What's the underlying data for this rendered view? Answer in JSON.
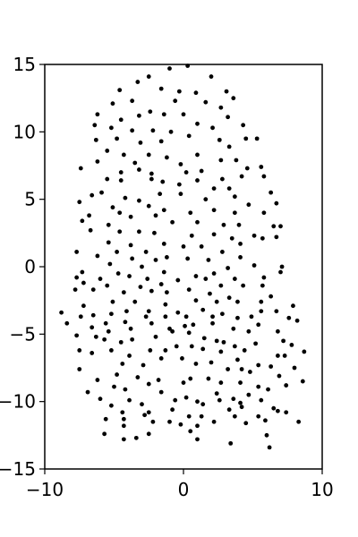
{
  "chart_data": {
    "type": "scatter",
    "title": "",
    "xlabel": "",
    "ylabel": "",
    "xlim": [
      -10,
      10
    ],
    "ylim": [
      -15,
      15
    ],
    "xticks": [
      -10,
      0,
      10
    ],
    "xtick_labels": [
      "−10",
      "0",
      "10"
    ],
    "yticks": [
      -15,
      -10,
      -5,
      0,
      5,
      10,
      15
    ],
    "ytick_labels": [
      "−15",
      "−10",
      "−5",
      "0",
      "5",
      "10",
      "15"
    ],
    "grid": false,
    "marker_color": "#000000",
    "points": [
      [
        -1.0,
        14.7
      ],
      [
        0.3,
        14.9
      ],
      [
        2.0,
        14.1
      ],
      [
        -2.5,
        14.1
      ],
      [
        -3.3,
        13.7
      ],
      [
        -1.6,
        13.2
      ],
      [
        -0.3,
        13.0
      ],
      [
        0.9,
        12.9
      ],
      [
        3.1,
        13.0
      ],
      [
        -4.6,
        13.1
      ],
      [
        3.6,
        12.5
      ],
      [
        -3.7,
        12.3
      ],
      [
        -5.1,
        12.1
      ],
      [
        -0.6,
        12.3
      ],
      [
        1.6,
        12.2
      ],
      [
        2.7,
        11.8
      ],
      [
        -6.2,
        11.3
      ],
      [
        -2.4,
        11.5
      ],
      [
        -1.4,
        11.3
      ],
      [
        0.0,
        11.3
      ],
      [
        -3.2,
        11.2
      ],
      [
        -4.5,
        10.9
      ],
      [
        3.2,
        11.1
      ],
      [
        1.0,
        10.6
      ],
      [
        2.1,
        10.3
      ],
      [
        4.3,
        10.5
      ],
      [
        -6.4,
        10.5
      ],
      [
        -5.2,
        10.3
      ],
      [
        -3.7,
        10.1
      ],
      [
        -2.2,
        10.1
      ],
      [
        -0.9,
        10.0
      ],
      [
        0.4,
        9.7
      ],
      [
        4.5,
        9.5
      ],
      [
        -6.3,
        9.4
      ],
      [
        -4.8,
        9.5
      ],
      [
        -3.1,
        9.2
      ],
      [
        -1.6,
        9.3
      ],
      [
        5.3,
        9.5
      ],
      [
        2.6,
        9.4
      ],
      [
        3.3,
        8.9
      ],
      [
        -5.5,
        8.6
      ],
      [
        -4.3,
        8.3
      ],
      [
        -2.5,
        8.3
      ],
      [
        -1.2,
        8.1
      ],
      [
        1.0,
        8.3
      ],
      [
        2.7,
        7.9
      ],
      [
        3.8,
        7.9
      ],
      [
        4.6,
        7.3
      ],
      [
        -6.2,
        7.8
      ],
      [
        -3.5,
        7.7
      ],
      [
        -0.2,
        7.6
      ],
      [
        5.6,
        7.4
      ],
      [
        -7.4,
        7.3
      ],
      [
        -3.2,
        7.2
      ],
      [
        -4.5,
        7.0
      ],
      [
        -2.3,
        6.9
      ],
      [
        -1.5,
        6.3
      ],
      [
        0.2,
        7.0
      ],
      [
        1.3,
        7.1
      ],
      [
        2.8,
        6.5
      ],
      [
        4.2,
        6.7
      ],
      [
        5.8,
        6.7
      ],
      [
        -5.5,
        6.5
      ],
      [
        -4.5,
        6.4
      ],
      [
        -2.3,
        6.5
      ],
      [
        -0.3,
        6.1
      ],
      [
        1.0,
        6.4
      ],
      [
        2.2,
        5.8
      ],
      [
        3.3,
        5.8
      ],
      [
        -6.6,
        5.3
      ],
      [
        -5.9,
        5.5
      ],
      [
        -4.2,
        5.1
      ],
      [
        -1.7,
        5.4
      ],
      [
        -0.2,
        5.4
      ],
      [
        1.6,
        5.0
      ],
      [
        3.7,
        5.2
      ],
      [
        -7.5,
        4.8
      ],
      [
        -5.1,
        4.4
      ],
      [
        -3.2,
        4.9
      ],
      [
        -2.5,
        4.5
      ],
      [
        4.7,
        4.6
      ],
      [
        6.3,
        5.5
      ],
      [
        6.7,
        4.7
      ],
      [
        -4.6,
        4.0
      ],
      [
        -1.4,
        4.2
      ],
      [
        0.5,
        4.0
      ],
      [
        2.2,
        4.2
      ],
      [
        3.7,
        4.0
      ],
      [
        -6.8,
        3.8
      ],
      [
        -3.8,
        3.7
      ],
      [
        -2.0,
        3.8
      ],
      [
        -0.8,
        3.3
      ],
      [
        2.9,
        3.1
      ],
      [
        5.8,
        4.0
      ],
      [
        -7.3,
        3.4
      ],
      [
        -5.4,
        3.1
      ],
      [
        1.0,
        3.3
      ],
      [
        4.0,
        3.1
      ],
      [
        6.5,
        3.0
      ],
      [
        -6.7,
        2.7
      ],
      [
        -4.6,
        2.6
      ],
      [
        -3.2,
        2.6
      ],
      [
        -2.1,
        2.5
      ],
      [
        0.6,
        2.3
      ],
      [
        2.2,
        2.4
      ],
      [
        3.5,
        2.1
      ],
      [
        5.1,
        2.3
      ],
      [
        7.0,
        3.0
      ],
      [
        -5.4,
        1.8
      ],
      [
        -3.8,
        1.6
      ],
      [
        -1.4,
        1.7
      ],
      [
        0.0,
        1.5
      ],
      [
        1.3,
        1.5
      ],
      [
        4.1,
        1.7
      ],
      [
        5.7,
        2.1
      ],
      [
        6.7,
        2.2
      ],
      [
        -7.7,
        1.1
      ],
      [
        -4.8,
        1.1
      ],
      [
        -2.7,
        1.1
      ],
      [
        2.8,
        1.1
      ],
      [
        -6.2,
        0.8
      ],
      [
        -3.7,
        0.6
      ],
      [
        -2.0,
        0.5
      ],
      [
        -1.2,
        0.7
      ],
      [
        0.3,
        0.6
      ],
      [
        1.8,
        0.5
      ],
      [
        4.1,
        0.7
      ],
      [
        5.1,
        0.1
      ],
      [
        7.1,
        0.0
      ],
      [
        -5.3,
        0.2
      ],
      [
        -3.0,
        0.0
      ],
      [
        3.2,
        -0.1
      ],
      [
        -7.3,
        -0.4
      ],
      [
        -4.7,
        -0.5
      ],
      [
        -1.4,
        -0.4
      ],
      [
        0.9,
        -0.7
      ],
      [
        2.2,
        -0.5
      ],
      [
        7.0,
        -0.4
      ],
      [
        -7.7,
        -0.8
      ],
      [
        -6.0,
        -0.9
      ],
      [
        -3.9,
        -0.7
      ],
      [
        -2.6,
        -0.9
      ],
      [
        -0.4,
        -1.0
      ],
      [
        1.6,
        -0.9
      ],
      [
        3.7,
        -0.9
      ],
      [
        5.8,
        -0.8
      ],
      [
        -7.2,
        -1.2
      ],
      [
        -5.5,
        -1.4
      ],
      [
        -3.1,
        -1.5
      ],
      [
        -1.6,
        -1.3
      ],
      [
        2.7,
        -1.4
      ],
      [
        4.3,
        -1.4
      ],
      [
        5.7,
        -1.4
      ],
      [
        -7.8,
        -1.7
      ],
      [
        -6.5,
        -1.7
      ],
      [
        -4.3,
        -1.9
      ],
      [
        -2.3,
        -1.8
      ],
      [
        -1.2,
        -1.9
      ],
      [
        0.4,
        -1.7
      ],
      [
        1.9,
        -2.0
      ],
      [
        3.3,
        -2.3
      ],
      [
        -5.1,
        -2.6
      ],
      [
        -3.5,
        -2.6
      ],
      [
        -1.3,
        -2.8
      ],
      [
        0.9,
        -2.5
      ],
      [
        2.4,
        -2.6
      ],
      [
        3.9,
        -2.6
      ],
      [
        6.3,
        -2.2
      ],
      [
        -7.2,
        -2.9
      ],
      [
        -6.5,
        -3.6
      ],
      [
        -5.2,
        -3.5
      ],
      [
        -4.1,
        -3.3
      ],
      [
        -2.5,
        -3.3
      ],
      [
        -0.4,
        -3.4
      ],
      [
        1.4,
        -3.2
      ],
      [
        2.8,
        -3.5
      ],
      [
        5.6,
        -2.6
      ],
      [
        7.9,
        -2.9
      ],
      [
        -8.8,
        -3.4
      ],
      [
        -7.4,
        -3.7
      ],
      [
        -2.7,
        -3.7
      ],
      [
        -1.3,
        -3.7
      ],
      [
        0.2,
        -3.7
      ],
      [
        2.1,
        -3.7
      ],
      [
        5.6,
        -3.3
      ],
      [
        6.7,
        -3.3
      ],
      [
        -8.4,
        -4.2
      ],
      [
        -5.6,
        -4.2
      ],
      [
        -4.2,
        -4.1
      ],
      [
        -2.3,
        -4.2
      ],
      [
        0.7,
        -4.3
      ],
      [
        3.9,
        -3.8
      ],
      [
        4.9,
        -3.7
      ],
      [
        7.6,
        -3.8
      ],
      [
        8.2,
        -4.0
      ],
      [
        -6.6,
        -4.5
      ],
      [
        -3.8,
        -4.6
      ],
      [
        -1.0,
        -4.6
      ],
      [
        0.1,
        -4.4
      ],
      [
        2.1,
        -4.2
      ],
      [
        5.4,
        -4.3
      ],
      [
        -7.7,
        -5.1
      ],
      [
        -5.4,
        -4.8
      ],
      [
        -0.8,
        -4.8
      ],
      [
        0.4,
        -4.9
      ],
      [
        4.7,
        -4.8
      ],
      [
        3.6,
        -4.6
      ],
      [
        -6.3,
        -5.2
      ],
      [
        -3.7,
        -5.4
      ],
      [
        -2.0,
        -5.2
      ],
      [
        1.5,
        -5.3
      ],
      [
        2.9,
        -5.6
      ],
      [
        6.8,
        -4.8
      ],
      [
        -5.7,
        -5.4
      ],
      [
        -4.5,
        -5.6
      ],
      [
        -0.5,
        -5.9
      ],
      [
        0.6,
        -5.9
      ],
      [
        2.4,
        -5.5
      ],
      [
        7.2,
        -5.5
      ],
      [
        -7.5,
        -6.2
      ],
      [
        -5.2,
        -6.2
      ],
      [
        -2.4,
        -6.2
      ],
      [
        -1.3,
        -6.2
      ],
      [
        1.4,
        -6.1
      ],
      [
        3.7,
        -5.9
      ],
      [
        5.2,
        -5.7
      ],
      [
        7.8,
        -5.8
      ],
      [
        -6.6,
        -6.4
      ],
      [
        -3.9,
        -6.6
      ],
      [
        2.7,
        -6.3
      ],
      [
        4.4,
        -6.2
      ],
      [
        6.8,
        -6.6
      ],
      [
        7.3,
        -6.6
      ],
      [
        8.7,
        -6.3
      ],
      [
        -1.6,
        -6.8
      ],
      [
        -0.1,
        -6.8
      ],
      [
        0.9,
        -7.2
      ],
      [
        2.0,
        -7.1
      ],
      [
        3.9,
        -6.9
      ],
      [
        5.4,
        -7.3
      ],
      [
        -7.5,
        -7.6
      ],
      [
        -4.4,
        -7.2
      ],
      [
        -2.9,
        -7.3
      ],
      [
        3.2,
        -7.6
      ],
      [
        4.2,
        -7.6
      ],
      [
        6.3,
        -7.4
      ],
      [
        8.0,
        -7.5
      ],
      [
        -4.8,
        -8.0
      ],
      [
        -3.3,
        -8.2
      ],
      [
        -1.8,
        -8.4
      ],
      [
        0.5,
        -8.3
      ],
      [
        1.8,
        -8.3
      ],
      [
        4.8,
        -7.8
      ],
      [
        6.9,
        -8.1
      ],
      [
        8.6,
        -8.5
      ],
      [
        -6.2,
        -8.4
      ],
      [
        -5.0,
        -8.9
      ],
      [
        -2.5,
        -8.7
      ],
      [
        0.0,
        -8.6
      ],
      [
        2.7,
        -8.6
      ],
      [
        4.1,
        -8.6
      ],
      [
        5.4,
        -8.9
      ],
      [
        7.4,
        -8.8
      ],
      [
        -6.9,
        -9.3
      ],
      [
        -4.2,
        -9.1
      ],
      [
        -1.6,
        -9.3
      ],
      [
        0.2,
        -9.7
      ],
      [
        2.4,
        -9.4
      ],
      [
        3.6,
        -9.8
      ],
      [
        4.7,
        -9.5
      ],
      [
        6.1,
        -9.1
      ],
      [
        -6.0,
        -9.8
      ],
      [
        -3.9,
        -9.9
      ],
      [
        -0.6,
        -9.9
      ],
      [
        1.0,
        -10.0
      ],
      [
        2.6,
        -9.9
      ],
      [
        4.1,
        -10.1
      ],
      [
        5.6,
        -9.9
      ],
      [
        -5.2,
        -10.3
      ],
      [
        -3.0,
        -10.2
      ],
      [
        1.4,
        -10.2
      ],
      [
        4.2,
        -10.4
      ],
      [
        -4.4,
        -10.8
      ],
      [
        -2.5,
        -10.8
      ],
      [
        -0.8,
        -10.6
      ],
      [
        3.3,
        -10.6
      ],
      [
        6.5,
        -10.5
      ],
      [
        -5.6,
        -11.3
      ],
      [
        -4.3,
        -11.3
      ],
      [
        -2.8,
        -11.0
      ],
      [
        0.4,
        -11.1
      ],
      [
        1.3,
        -11.1
      ],
      [
        3.7,
        -11.1
      ],
      [
        5.4,
        -11.1
      ],
      [
        6.8,
        -10.7
      ],
      [
        7.4,
        -10.8
      ],
      [
        -2.2,
        -11.5
      ],
      [
        -1.0,
        -11.5
      ],
      [
        2.2,
        -11.5
      ],
      [
        5.9,
        -11.4
      ],
      [
        -4.3,
        -11.8
      ],
      [
        -0.2,
        -11.7
      ],
      [
        1.0,
        -11.8
      ],
      [
        4.5,
        -11.6
      ],
      [
        8.3,
        -11.5
      ],
      [
        -5.7,
        -12.4
      ],
      [
        -2.5,
        -12.4
      ],
      [
        0.5,
        -12.2
      ],
      [
        6.0,
        -12.5
      ],
      [
        -4.3,
        -12.8
      ],
      [
        -3.4,
        -12.7
      ],
      [
        1.0,
        -12.8
      ],
      [
        3.4,
        -13.1
      ],
      [
        6.2,
        -13.4
      ]
    ]
  }
}
